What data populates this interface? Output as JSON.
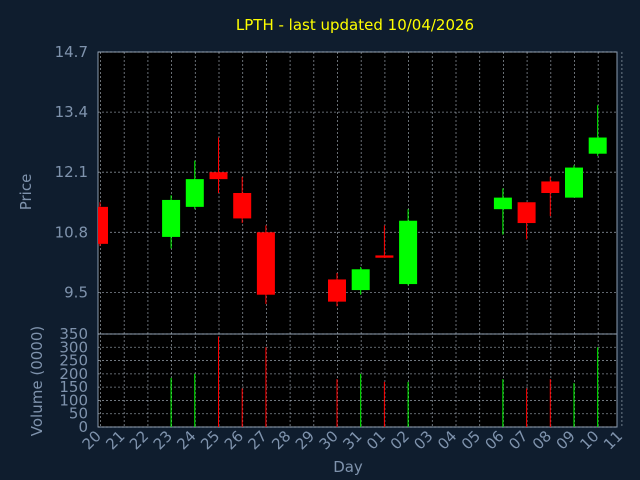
{
  "chart_data": [
    {
      "type": "candlestick",
      "title": "LPTH - last updated 10/04/2026",
      "ylabel": "Price",
      "ylim": [
        8.6,
        14.7
      ],
      "yticks": [
        9.5,
        10.8,
        12.1,
        13.4,
        14.7
      ],
      "grid": true,
      "categories": [
        "20",
        "21",
        "22",
        "23",
        "24",
        "25",
        "26",
        "27",
        "28",
        "29",
        "30",
        "31",
        "01",
        "02",
        "03",
        "04",
        "05",
        "06",
        "07",
        "08",
        "09",
        "10",
        "11"
      ],
      "candles": [
        {
          "day": "20",
          "open": 11.35,
          "high": 11.45,
          "low": 10.5,
          "close": 10.55
        },
        {
          "day": "23",
          "open": 10.7,
          "high": 11.6,
          "low": 10.45,
          "close": 11.5
        },
        {
          "day": "24",
          "open": 11.35,
          "high": 12.35,
          "low": 11.3,
          "close": 11.95
        },
        {
          "day": "25",
          "open": 12.1,
          "high": 12.85,
          "low": 11.65,
          "close": 11.95
        },
        {
          "day": "26",
          "open": 11.65,
          "high": 12.0,
          "low": 11.0,
          "close": 11.1
        },
        {
          "day": "27",
          "open": 10.8,
          "high": 10.95,
          "low": 9.25,
          "close": 9.45
        },
        {
          "day": "30",
          "open": 9.78,
          "high": 9.92,
          "low": 9.2,
          "close": 9.3
        },
        {
          "day": "31",
          "open": 9.55,
          "high": 10.05,
          "low": 9.45,
          "close": 10.0
        },
        {
          "day": "01",
          "open": 10.3,
          "high": 10.95,
          "low": 10.25,
          "close": 10.25
        },
        {
          "day": "02",
          "open": 9.68,
          "high": 11.3,
          "low": 9.65,
          "close": 11.05
        },
        {
          "day": "06",
          "open": 11.3,
          "high": 11.75,
          "low": 10.75,
          "close": 11.55
        },
        {
          "day": "07",
          "open": 11.45,
          "high": 11.45,
          "low": 10.65,
          "close": 11.0
        },
        {
          "day": "08",
          "open": 11.9,
          "high": 12.0,
          "low": 11.15,
          "close": 11.65
        },
        {
          "day": "09",
          "open": 11.55,
          "high": 12.25,
          "low": 11.55,
          "close": 12.2
        },
        {
          "day": "10",
          "open": 12.5,
          "high": 13.55,
          "low": 12.45,
          "close": 12.85
        }
      ]
    },
    {
      "type": "bar",
      "ylabel": "Volume (0000)",
      "xlabel": "Day",
      "ylim": [
        0,
        350
      ],
      "yticks": [
        0,
        50,
        100,
        150,
        200,
        250,
        300,
        350
      ],
      "grid": true,
      "categories": [
        "20",
        "21",
        "22",
        "23",
        "24",
        "25",
        "26",
        "27",
        "28",
        "29",
        "30",
        "31",
        "01",
        "02",
        "03",
        "04",
        "05",
        "06",
        "07",
        "08",
        "09",
        "10",
        "11"
      ],
      "bars": [
        {
          "day": "23",
          "value": 185
        },
        {
          "day": "24",
          "value": 200
        },
        {
          "day": "25",
          "value": 340
        },
        {
          "day": "26",
          "value": 145
        },
        {
          "day": "27",
          "value": 300
        },
        {
          "day": "30",
          "value": 180
        },
        {
          "day": "31",
          "value": 200
        },
        {
          "day": "01",
          "value": 170
        },
        {
          "day": "02",
          "value": 170
        },
        {
          "day": "06",
          "value": 180
        },
        {
          "day": "07",
          "value": 145
        },
        {
          "day": "08",
          "value": 180
        },
        {
          "day": "09",
          "value": 165
        },
        {
          "day": "10",
          "value": 300
        }
      ]
    }
  ],
  "colors": {
    "background": "#0f1d2e",
    "plot_background": "#000000",
    "grid": "#b8c4d0",
    "up": "#00ff00",
    "down": "#ff0000",
    "title": "#ffff00",
    "text": "#7f93ad"
  }
}
